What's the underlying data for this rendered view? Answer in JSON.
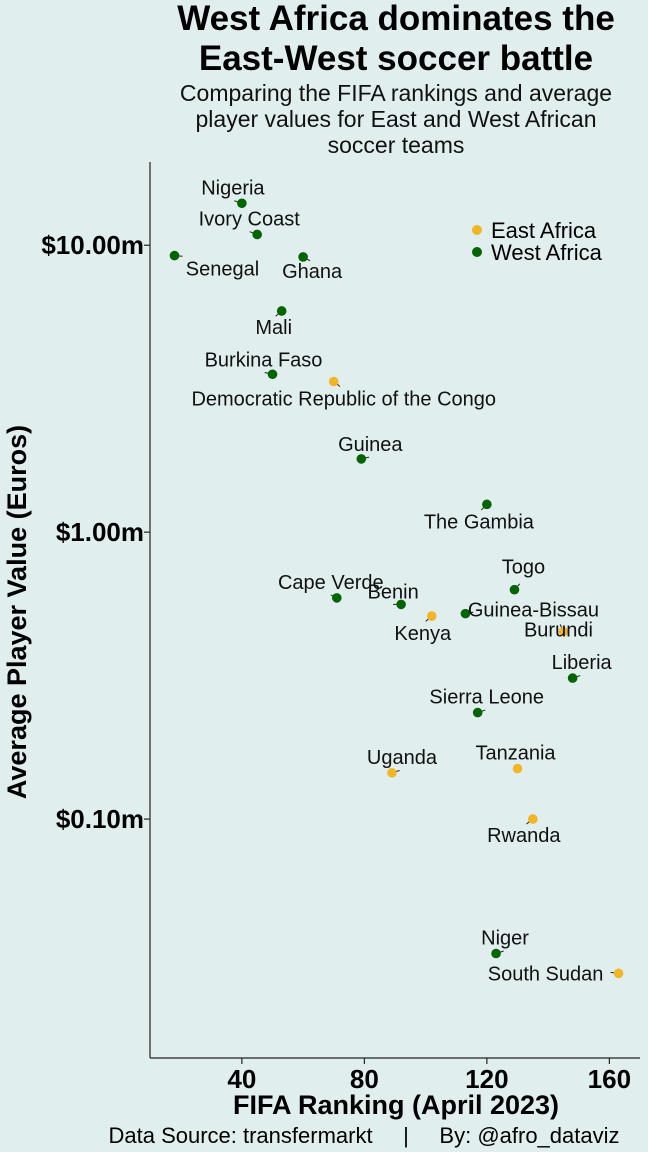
{
  "chart_data": {
    "type": "scatter",
    "title": [
      "West Africa dominates the",
      "East-West soccer battle"
    ],
    "subtitle": [
      "Comparing the FIFA rankings and average",
      "player values for East and West African",
      "soccer teams"
    ],
    "xlabel": "FIFA Ranking (April 2023)",
    "ylabel": "Average Player Value (Euros)",
    "x_ticks": [
      40,
      80,
      120,
      160
    ],
    "y_ticks": [
      {
        "value": 10.0,
        "label": "$10.00m"
      },
      {
        "value": 1.0,
        "label": "$1.00m"
      },
      {
        "value": 0.1,
        "label": "$0.10m"
      }
    ],
    "y_scale": "log",
    "xlim": [
      10,
      170
    ],
    "ylim": [
      0.0147,
      19.5
    ],
    "legend": "top-right",
    "series": [
      {
        "name": "East Africa",
        "color": "#f2b526",
        "points": [
          {
            "label": "Democratic Republic of the Congo",
            "x": 70,
            "y": 3.35
          },
          {
            "label": "Kenya",
            "x": 102,
            "y": 0.51
          },
          {
            "label": "Burundi",
            "x": 145,
            "y": 0.45
          },
          {
            "label": "Uganda",
            "x": 89,
            "y": 0.145
          },
          {
            "label": "Tanzania",
            "x": 130,
            "y": 0.15
          },
          {
            "label": "Rwanda",
            "x": 135,
            "y": 0.1
          },
          {
            "label": "South Sudan",
            "x": 163,
            "y": 0.029
          }
        ]
      },
      {
        "name": "West Africa",
        "color": "#006400",
        "points": [
          {
            "label": "Nigeria",
            "x": 40,
            "y": 14.0
          },
          {
            "label": "Ivory Coast",
            "x": 45,
            "y": 10.9
          },
          {
            "label": "Senegal",
            "x": 18,
            "y": 9.2
          },
          {
            "label": "Ghana",
            "x": 60,
            "y": 9.1
          },
          {
            "label": "Mali",
            "x": 53,
            "y": 5.9
          },
          {
            "label": "Burkina Faso",
            "x": 50,
            "y": 3.55
          },
          {
            "label": "Guinea",
            "x": 79,
            "y": 1.8
          },
          {
            "label": "The Gambia",
            "x": 120,
            "y": 1.25
          },
          {
            "label": "Togo",
            "x": 129,
            "y": 0.63
          },
          {
            "label": "Cape Verde",
            "x": 71,
            "y": 0.59
          },
          {
            "label": "Benin",
            "x": 92,
            "y": 0.56
          },
          {
            "label": "Guinea-Bissau",
            "x": 113,
            "y": 0.52
          },
          {
            "label": "Liberia",
            "x": 148,
            "y": 0.31
          },
          {
            "label": "Sierra Leone",
            "x": 117,
            "y": 0.235
          },
          {
            "label": "Niger",
            "x": 123,
            "y": 0.034
          }
        ]
      }
    ]
  },
  "caption": "Data Source: transfermarkt     |     By: @afro_dataviz"
}
